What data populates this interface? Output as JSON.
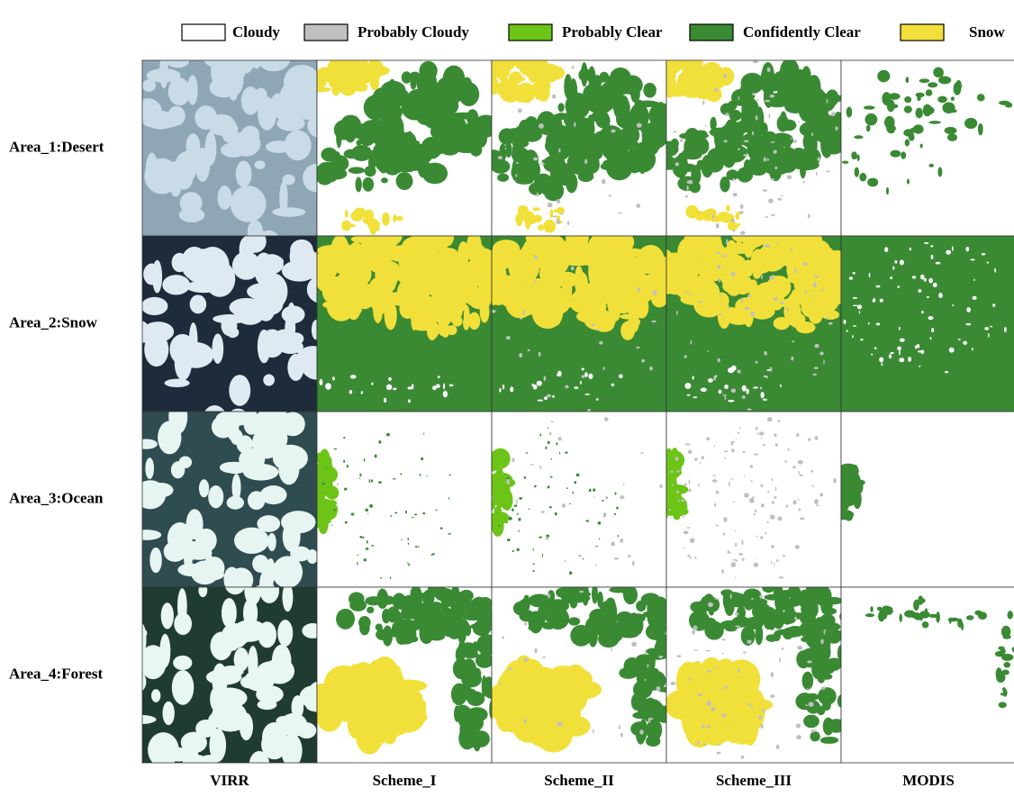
{
  "legend": [
    {
      "label": "Cloudy",
      "color": "#ffffff"
    },
    {
      "label": "Probably Cloudy",
      "color": "#c0c0c0"
    },
    {
      "label": "Probably Clear",
      "color": "#6cc417"
    },
    {
      "label": "Confidently Clear",
      "color": "#3a8a34"
    },
    {
      "label": "Snow",
      "color": "#f2e03a"
    }
  ],
  "rows": [
    "Area_1:Desert",
    "Area_2:Snow",
    "Area_3:Ocean",
    "Area_4:Forest"
  ],
  "columns": [
    "VIRR",
    "Scheme_I",
    "Scheme_II",
    "Scheme_III",
    "MODIS"
  ]
}
